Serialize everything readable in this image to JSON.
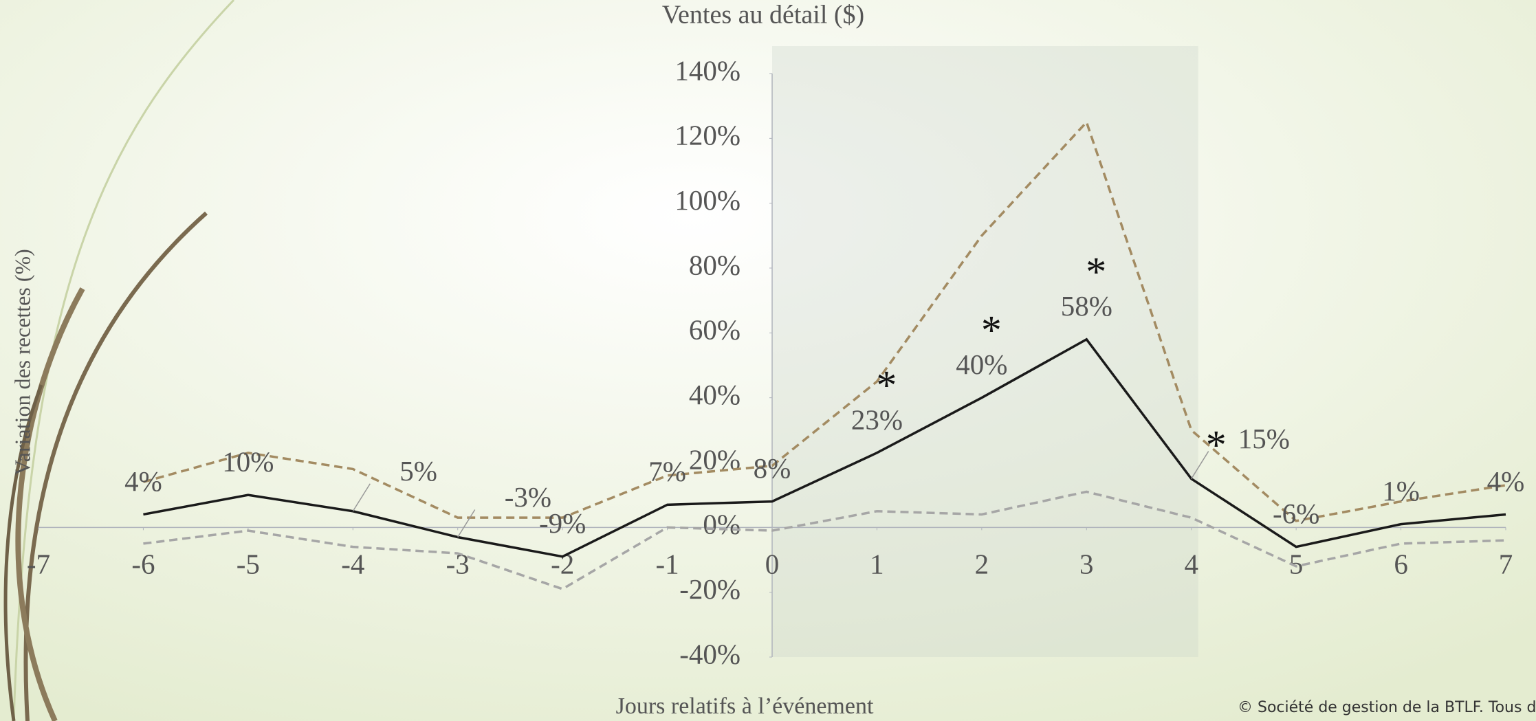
{
  "chart_data": {
    "type": "line",
    "title": "Ventes au détail ($)",
    "y_label": "Variation des recettes (%)",
    "x_label": "Jours relatifs à l’événement",
    "footer": "© Société de gestion de la BTLF. Tous droits r",
    "x": [
      -6,
      -5,
      -4,
      -3,
      -2,
      -1,
      0,
      1,
      2,
      3,
      4,
      5,
      6,
      7
    ],
    "xlim": [
      -7,
      7
    ],
    "xticks": [
      -7,
      -6,
      -5,
      -4,
      -3,
      -2,
      -1,
      0,
      1,
      2,
      3,
      4,
      5,
      6,
      7
    ],
    "ylim": [
      -40,
      140
    ],
    "yticks": [
      {
        "value": -40,
        "label": "-40%"
      },
      {
        "value": -20,
        "label": "-20%"
      },
      {
        "value": 0,
        "label": "0%"
      },
      {
        "value": 20,
        "label": "20%"
      },
      {
        "value": 40,
        "label": "40%"
      },
      {
        "value": 60,
        "label": "60%"
      },
      {
        "value": 80,
        "label": "80%"
      },
      {
        "value": 100,
        "label": "100%"
      },
      {
        "value": 120,
        "label": "120%"
      },
      {
        "value": 140,
        "label": "140%"
      }
    ],
    "shade": [
      0,
      4
    ],
    "series": [
      {
        "color": "#a38b62",
        "dash": true,
        "values": [
          14,
          23,
          18,
          3,
          3,
          16,
          19,
          45,
          90,
          125,
          30,
          2,
          8,
          13
        ]
      },
      {
        "color": "#a6a6a6",
        "dash": true,
        "values": [
          -5,
          -1,
          -6,
          -8,
          -19,
          0,
          -1,
          5,
          4,
          11,
          3,
          -12,
          -5,
          -4
        ]
      },
      {
        "color": "#1a1a1a",
        "dash": false,
        "values": [
          4,
          10,
          5,
          -3,
          -9,
          7,
          8,
          23,
          40,
          58,
          15,
          -6,
          1,
          4
        ],
        "value_labels": [
          "4%",
          "10%",
          "5%",
          "-3%",
          "-9%",
          "7%",
          "8%",
          "23%",
          "40%",
          "58%",
          "15%",
          "-6%",
          "1%",
          "4%"
        ],
        "significance": [
          null,
          null,
          null,
          null,
          null,
          null,
          null,
          "*",
          "*",
          "*",
          "*",
          null,
          null,
          null
        ]
      }
    ]
  }
}
